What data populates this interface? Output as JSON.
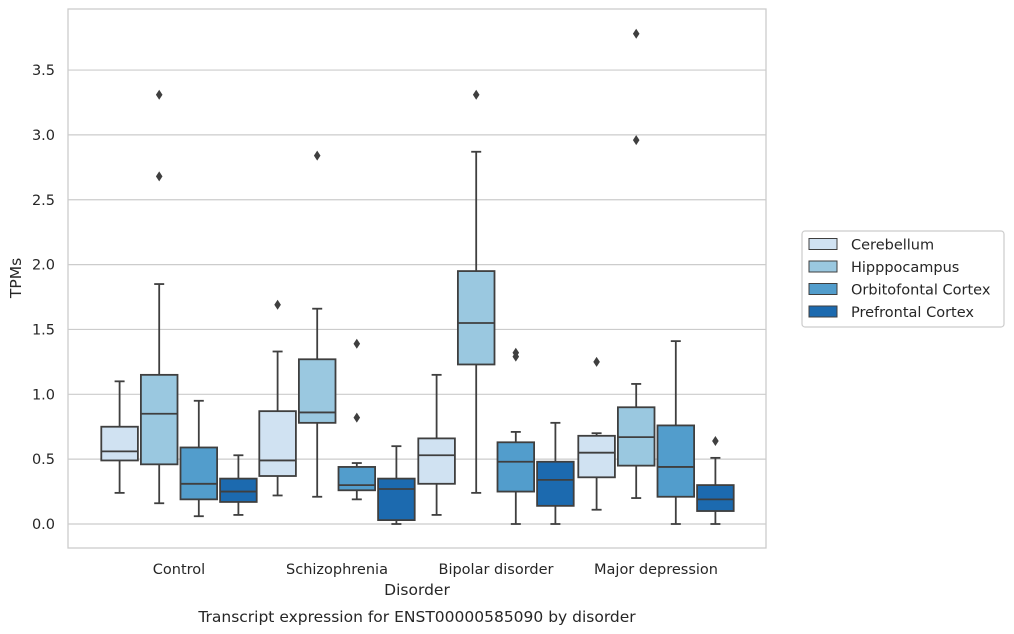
{
  "chart_data": {
    "type": "box",
    "title": "",
    "caption": "Transcript expression for ENST00000585090 by disorder",
    "xlabel": "Disorder",
    "ylabel": "TPMs",
    "ylim": [
      -0.18,
      3.97
    ],
    "yticks": [
      "0.0",
      "0.5",
      "1.0",
      "1.5",
      "2.0",
      "2.5",
      "3.0",
      "3.5"
    ],
    "grid": true,
    "legend_position": "right",
    "categories": [
      "Control",
      "Schizophrenia",
      "Bipolar disorder",
      "Major depression"
    ],
    "series": [
      {
        "name": "Cerebellum",
        "color": "#d0e2f2",
        "boxes": [
          {
            "whislo": 0.24,
            "q1": 0.49,
            "med": 0.56,
            "q3": 0.75,
            "whishi": 1.1,
            "fliers": []
          },
          {
            "whislo": 0.22,
            "q1": 0.37,
            "med": 0.49,
            "q3": 0.87,
            "whishi": 1.33,
            "fliers": [
              1.69
            ]
          },
          {
            "whislo": 0.07,
            "q1": 0.31,
            "med": 0.53,
            "q3": 0.66,
            "whishi": 1.15,
            "fliers": []
          },
          {
            "whislo": 0.11,
            "q1": 0.36,
            "med": 0.55,
            "q3": 0.68,
            "whishi": 0.7,
            "fliers": [
              1.25
            ]
          }
        ]
      },
      {
        "name": "Hipppocampus",
        "color": "#9ac8e0",
        "boxes": [
          {
            "whislo": 0.16,
            "q1": 0.46,
            "med": 0.85,
            "q3": 1.15,
            "whishi": 1.85,
            "fliers": [
              2.68,
              3.31
            ]
          },
          {
            "whislo": 0.21,
            "q1": 0.78,
            "med": 0.86,
            "q3": 1.27,
            "whishi": 1.66,
            "fliers": [
              2.84
            ]
          },
          {
            "whislo": 0.24,
            "q1": 1.23,
            "med": 1.55,
            "q3": 1.95,
            "whishi": 2.87,
            "fliers": [
              3.31
            ]
          },
          {
            "whislo": 0.2,
            "q1": 0.45,
            "med": 0.67,
            "q3": 0.9,
            "whishi": 1.08,
            "fliers": [
              2.96,
              3.78
            ]
          }
        ]
      },
      {
        "name": "Orbitofontal Cortex",
        "color": "#529dcc",
        "boxes": [
          {
            "whislo": 0.06,
            "q1": 0.19,
            "med": 0.31,
            "q3": 0.59,
            "whishi": 0.95,
            "fliers": []
          },
          {
            "whislo": 0.19,
            "q1": 0.26,
            "med": 0.3,
            "q3": 0.44,
            "whishi": 0.47,
            "fliers": [
              0.82,
              1.39
            ]
          },
          {
            "whislo": 0.0,
            "q1": 0.25,
            "med": 0.48,
            "q3": 0.63,
            "whishi": 0.71,
            "fliers": [
              1.29,
              1.32
            ]
          },
          {
            "whislo": 0.0,
            "q1": 0.21,
            "med": 0.44,
            "q3": 0.76,
            "whishi": 1.41,
            "fliers": []
          }
        ]
      },
      {
        "name": "Prefrontal Cortex",
        "color": "#1c6aaf",
        "boxes": [
          {
            "whislo": 0.07,
            "q1": 0.17,
            "med": 0.25,
            "q3": 0.35,
            "whishi": 0.53,
            "fliers": []
          },
          {
            "whislo": 0.0,
            "q1": 0.03,
            "med": 0.27,
            "q3": 0.35,
            "whishi": 0.6,
            "fliers": []
          },
          {
            "whislo": 0.0,
            "q1": 0.14,
            "med": 0.34,
            "q3": 0.48,
            "whishi": 0.78,
            "fliers": []
          },
          {
            "whislo": 0.0,
            "q1": 0.1,
            "med": 0.19,
            "q3": 0.3,
            "whishi": 0.51,
            "fliers": [
              0.64
            ]
          }
        ]
      }
    ]
  }
}
